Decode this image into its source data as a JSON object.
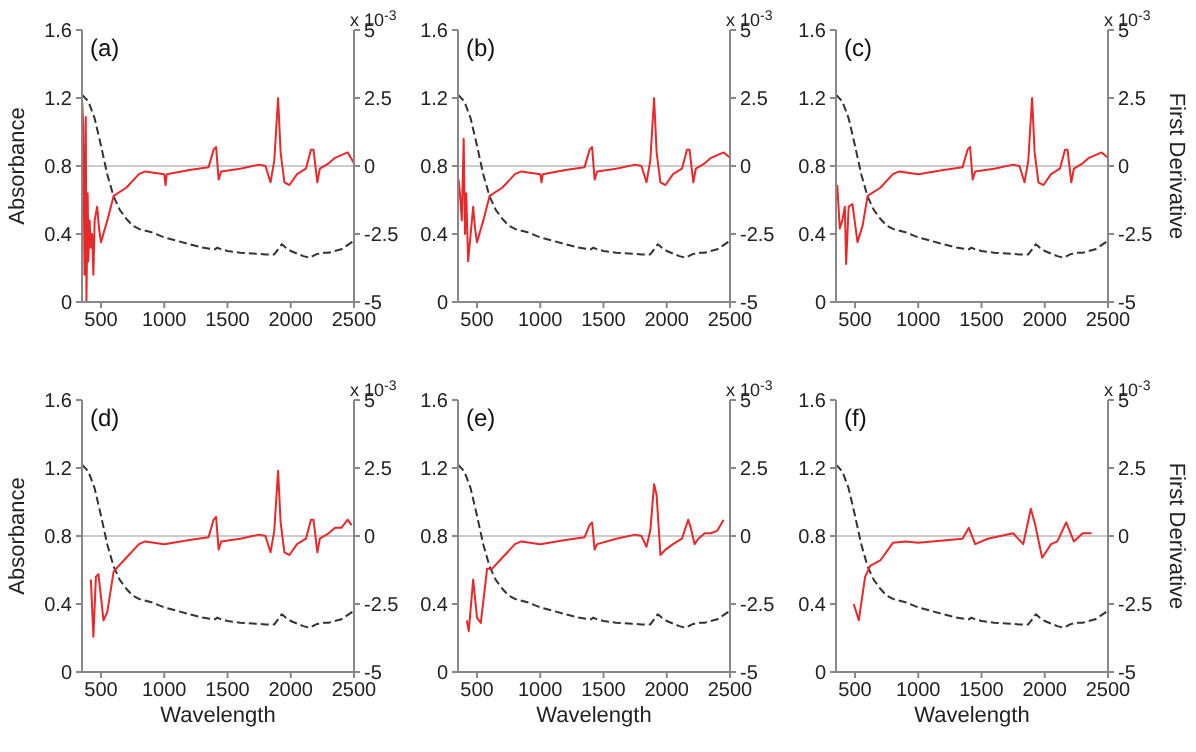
{
  "chart_data": [
    {
      "type": "line",
      "title": "(a)",
      "ylabel": "Absorbance",
      "annotations": [
        "x 10$^{-3}$"
      ],
      "xlim": [
        350,
        2500
      ],
      "xticks": [
        500,
        1000,
        1500,
        2000,
        2500
      ],
      "ylim": [
        0,
        1.6
      ],
      "yticks": [
        0,
        0.4,
        0.8,
        1.2,
        1.6
      ],
      "y2lim": [
        -5,
        5
      ],
      "y2ticks": [
        -5,
        -2.5,
        0,
        2.5,
        5
      ],
      "ref_lines": [
        {
          "axis": "y2",
          "value": 0,
          "color": "#cccccc"
        }
      ],
      "series": [
        {
          "color": "#333333",
          "line_style": "dashed",
          "x": [
            350,
            400,
            450,
            500,
            550,
            600,
            650,
            700,
            750,
            800,
            900,
            1000,
            1100,
            1200,
            1300,
            1400,
            1420,
            1450,
            1500,
            1600,
            1700,
            1800,
            1870,
            1900,
            1930,
            1960,
            2000,
            2100,
            2150,
            2200,
            2250,
            2300,
            2400,
            2500
          ],
          "values": [
            1.22,
            1.18,
            1.08,
            0.92,
            0.75,
            0.62,
            0.54,
            0.49,
            0.45,
            0.43,
            0.41,
            0.38,
            0.36,
            0.34,
            0.32,
            0.31,
            0.32,
            0.31,
            0.3,
            0.29,
            0.285,
            0.28,
            0.28,
            0.31,
            0.34,
            0.32,
            0.3,
            0.27,
            0.26,
            0.28,
            0.29,
            0.29,
            0.31,
            0.36
          ]
        },
        {
          "axis": "y2",
          "color": "#e8282a",
          "line_style": "solid",
          "x": [
            350,
            360,
            370,
            380,
            385,
            395,
            400,
            410,
            420,
            430,
            440,
            450,
            470,
            485,
            500,
            550,
            600,
            700,
            800,
            850,
            1000,
            1010,
            1020,
            1200,
            1350,
            1390,
            1410,
            1430,
            1450,
            1600,
            1750,
            1800,
            1840,
            1870,
            1900,
            1920,
            1950,
            1990,
            2050,
            2120,
            2160,
            2180,
            2210,
            2230,
            2300,
            2350,
            2400,
            2450,
            2500
          ],
          "values": [
            2.5,
            1.5,
            -4,
            1.8,
            -5,
            -1,
            -3.5,
            -2,
            -3,
            -2.5,
            -4,
            -2,
            -1.5,
            -2.3,
            -2.8,
            -2,
            -1.1,
            -0.8,
            -0.3,
            -0.2,
            -0.3,
            -0.7,
            -0.3,
            -0.15,
            -0.05,
            0.6,
            0.7,
            -0.5,
            -0.2,
            -0.1,
            0.05,
            0,
            -0.6,
            0.2,
            2.5,
            0.5,
            -0.6,
            -0.7,
            -0.3,
            -0.1,
            0.6,
            0.6,
            -0.6,
            -0.1,
            0.1,
            0.3,
            0.4,
            0.5,
            0.1
          ]
        }
      ]
    },
    {
      "type": "line",
      "title": "(b)",
      "annotations": [
        "x 10$^{-3}$"
      ],
      "xlim": [
        350,
        2500
      ],
      "xticks": [
        500,
        1000,
        1500,
        2000,
        2500
      ],
      "ylim": [
        0,
        1.6
      ],
      "yticks": [
        0,
        0.4,
        0.8,
        1.2,
        1.6
      ],
      "y2lim": [
        -5,
        5
      ],
      "y2ticks": [
        -5,
        -2.5,
        0,
        2.5,
        5
      ],
      "ref_lines": [
        {
          "axis": "y2",
          "value": 0,
          "color": "#cccccc"
        }
      ],
      "series": [
        {
          "color": "#333333",
          "line_style": "dashed",
          "x": [
            350,
            400,
            450,
            500,
            550,
            600,
            650,
            700,
            750,
            800,
            900,
            1000,
            1100,
            1200,
            1300,
            1400,
            1420,
            1450,
            1500,
            1600,
            1700,
            1800,
            1870,
            1900,
            1930,
            1960,
            2000,
            2100,
            2150,
            2200,
            2250,
            2300,
            2400,
            2500
          ],
          "values": [
            1.22,
            1.18,
            1.08,
            0.92,
            0.75,
            0.62,
            0.54,
            0.49,
            0.45,
            0.43,
            0.41,
            0.38,
            0.36,
            0.34,
            0.32,
            0.31,
            0.32,
            0.31,
            0.3,
            0.29,
            0.285,
            0.28,
            0.28,
            0.31,
            0.34,
            0.32,
            0.3,
            0.27,
            0.26,
            0.28,
            0.29,
            0.29,
            0.31,
            0.36
          ]
        },
        {
          "axis": "y2",
          "color": "#e8282a",
          "line_style": "solid",
          "x": [
            355,
            365,
            380,
            395,
            405,
            415,
            430,
            450,
            470,
            485,
            500,
            550,
            600,
            700,
            800,
            850,
            1000,
            1010,
            1020,
            1200,
            1350,
            1390,
            1410,
            1430,
            1450,
            1600,
            1750,
            1800,
            1840,
            1870,
            1900,
            1920,
            1950,
            1990,
            2050,
            2120,
            2160,
            2180,
            2210,
            2230,
            2300,
            2350,
            2400,
            2450,
            2500
          ],
          "values": [
            -0.5,
            -1,
            -2,
            1,
            -2.5,
            -1,
            -3.5,
            -2.5,
            -1.5,
            -2.3,
            -2.8,
            -2,
            -1.1,
            -0.8,
            -0.3,
            -0.2,
            -0.3,
            -0.6,
            -0.3,
            -0.15,
            -0.05,
            0.6,
            0.7,
            -0.5,
            -0.2,
            -0.1,
            0.05,
            0,
            -0.6,
            0.2,
            2.5,
            0.5,
            -0.6,
            -0.7,
            -0.3,
            -0.1,
            0.6,
            0.6,
            -0.6,
            -0.1,
            0.1,
            0.3,
            0.4,
            0.5,
            0.3
          ]
        }
      ]
    },
    {
      "type": "line",
      "title": "(c)",
      "y2label": "First Derivative",
      "annotations": [
        "x 10$^{-3}$"
      ],
      "xlim": [
        350,
        2500
      ],
      "xticks": [
        500,
        1000,
        1500,
        2000,
        2500
      ],
      "ylim": [
        0,
        1.6
      ],
      "yticks": [
        0,
        0.4,
        0.8,
        1.2,
        1.6
      ],
      "y2lim": [
        -5,
        5
      ],
      "y2ticks": [
        -5,
        -2.5,
        0,
        2.5,
        5
      ],
      "ref_lines": [
        {
          "axis": "y2",
          "value": 0,
          "color": "#cccccc"
        }
      ],
      "series": [
        {
          "color": "#333333",
          "line_style": "dashed",
          "x": [
            350,
            400,
            450,
            500,
            550,
            600,
            650,
            700,
            750,
            800,
            900,
            1000,
            1100,
            1200,
            1300,
            1400,
            1420,
            1450,
            1500,
            1600,
            1700,
            1800,
            1870,
            1900,
            1930,
            1960,
            2000,
            2100,
            2150,
            2200,
            2250,
            2300,
            2400,
            2500
          ],
          "values": [
            1.22,
            1.18,
            1.08,
            0.92,
            0.75,
            0.62,
            0.54,
            0.49,
            0.45,
            0.43,
            0.41,
            0.38,
            0.36,
            0.34,
            0.32,
            0.31,
            0.32,
            0.31,
            0.3,
            0.29,
            0.285,
            0.28,
            0.28,
            0.31,
            0.34,
            0.32,
            0.3,
            0.27,
            0.26,
            0.28,
            0.29,
            0.29,
            0.31,
            0.36
          ]
        },
        {
          "axis": "y2",
          "color": "#e8282a",
          "line_style": "solid",
          "x": [
            360,
            380,
            400,
            420,
            430,
            450,
            480,
            520,
            560,
            600,
            700,
            800,
            850,
            1000,
            1200,
            1350,
            1390,
            1410,
            1430,
            1450,
            1600,
            1750,
            1800,
            1840,
            1870,
            1900,
            1920,
            1950,
            1990,
            2050,
            2120,
            2160,
            2180,
            2210,
            2230,
            2300,
            2350,
            2400,
            2450,
            2500
          ],
          "values": [
            -0.7,
            -2.3,
            -2,
            -1.5,
            -3.6,
            -1.5,
            -1.4,
            -2.8,
            -2.2,
            -1.1,
            -0.8,
            -0.3,
            -0.2,
            -0.3,
            -0.15,
            -0.05,
            0.6,
            0.7,
            -0.5,
            -0.2,
            -0.1,
            0.05,
            0,
            -0.6,
            0.2,
            2.5,
            0.5,
            -0.6,
            -0.7,
            -0.3,
            -0.1,
            0.6,
            0.6,
            -0.6,
            -0.1,
            0.1,
            0.3,
            0.4,
            0.5,
            0.3
          ]
        }
      ]
    },
    {
      "type": "line",
      "title": "(d)",
      "ylabel": "Absorbance",
      "xlabel": "Wavelength",
      "annotations": [
        "x 10$^{-3}$"
      ],
      "xlim": [
        350,
        2500
      ],
      "xticks": [
        500,
        1000,
        1500,
        2000,
        2500
      ],
      "ylim": [
        0,
        1.6
      ],
      "yticks": [
        0,
        0.4,
        0.8,
        1.2,
        1.6
      ],
      "y2lim": [
        -5,
        5
      ],
      "y2ticks": [
        -5,
        -2.5,
        0,
        2.5,
        5
      ],
      "ref_lines": [
        {
          "axis": "y2",
          "value": 0,
          "color": "#cccccc"
        }
      ],
      "series": [
        {
          "color": "#333333",
          "line_style": "dashed",
          "x": [
            350,
            400,
            450,
            500,
            550,
            600,
            650,
            700,
            750,
            800,
            900,
            1000,
            1100,
            1200,
            1300,
            1400,
            1420,
            1450,
            1500,
            1600,
            1700,
            1800,
            1870,
            1900,
            1930,
            1960,
            2000,
            2100,
            2150,
            2200,
            2250,
            2300,
            2400,
            2500
          ],
          "values": [
            1.22,
            1.18,
            1.08,
            0.92,
            0.75,
            0.62,
            0.54,
            0.49,
            0.45,
            0.43,
            0.41,
            0.38,
            0.36,
            0.34,
            0.32,
            0.31,
            0.32,
            0.31,
            0.3,
            0.29,
            0.285,
            0.28,
            0.28,
            0.31,
            0.34,
            0.32,
            0.3,
            0.27,
            0.26,
            0.28,
            0.29,
            0.29,
            0.31,
            0.36
          ]
        },
        {
          "axis": "y2",
          "color": "#e8282a",
          "line_style": "solid",
          "x": [
            420,
            440,
            460,
            480,
            520,
            550,
            600,
            700,
            800,
            850,
            1000,
            1200,
            1350,
            1390,
            1410,
            1430,
            1450,
            1600,
            1750,
            1800,
            1840,
            1870,
            1900,
            1920,
            1950,
            1990,
            2050,
            2120,
            2160,
            2180,
            2210,
            2230,
            2300,
            2350,
            2400,
            2450,
            2480
          ],
          "values": [
            -1.6,
            -3.7,
            -1.5,
            -1.4,
            -3.1,
            -2.8,
            -1.3,
            -0.8,
            -0.3,
            -0.2,
            -0.3,
            -0.15,
            -0.05,
            0.6,
            0.7,
            -0.5,
            -0.2,
            -0.1,
            0.05,
            0,
            -0.6,
            0.2,
            2.4,
            0.5,
            -0.6,
            -0.7,
            -0.3,
            -0.1,
            0.6,
            0.6,
            -0.6,
            -0.1,
            0.1,
            0.3,
            0.3,
            0.6,
            0.4
          ]
        }
      ]
    },
    {
      "type": "line",
      "title": "(e)",
      "xlabel": "Wavelength",
      "annotations": [
        "x 10$^{-3}$"
      ],
      "xlim": [
        350,
        2500
      ],
      "xticks": [
        500,
        1000,
        1500,
        2000,
        2500
      ],
      "ylim": [
        0,
        1.6
      ],
      "yticks": [
        0,
        0.4,
        0.8,
        1.2,
        1.6
      ],
      "y2lim": [
        -5,
        5
      ],
      "y2ticks": [
        -5,
        -2.5,
        0,
        2.5,
        5
      ],
      "ref_lines": [
        {
          "axis": "y2",
          "value": 0,
          "color": "#cccccc"
        }
      ],
      "series": [
        {
          "color": "#333333",
          "line_style": "dashed",
          "x": [
            350,
            400,
            450,
            500,
            550,
            600,
            650,
            700,
            750,
            800,
            900,
            1000,
            1100,
            1200,
            1300,
            1400,
            1420,
            1450,
            1500,
            1600,
            1700,
            1800,
            1870,
            1900,
            1930,
            1960,
            2000,
            2100,
            2150,
            2200,
            2250,
            2300,
            2400,
            2500
          ],
          "values": [
            1.22,
            1.18,
            1.08,
            0.92,
            0.75,
            0.62,
            0.54,
            0.49,
            0.45,
            0.43,
            0.41,
            0.38,
            0.36,
            0.34,
            0.32,
            0.31,
            0.32,
            0.31,
            0.3,
            0.29,
            0.285,
            0.28,
            0.28,
            0.31,
            0.34,
            0.32,
            0.3,
            0.27,
            0.26,
            0.28,
            0.29,
            0.29,
            0.31,
            0.36
          ]
        },
        {
          "axis": "y2",
          "color": "#e8282a",
          "line_style": "solid",
          "x": [
            420,
            435,
            470,
            500,
            530,
            580,
            620,
            700,
            800,
            850,
            1000,
            1200,
            1350,
            1390,
            1410,
            1430,
            1450,
            1600,
            1750,
            1800,
            1840,
            1870,
            1900,
            1920,
            1950,
            1990,
            2050,
            2120,
            2170,
            2190,
            2220,
            2250,
            2300,
            2350,
            2400,
            2450
          ],
          "values": [
            -3.1,
            -3.5,
            -1.6,
            -3,
            -3.2,
            -1.2,
            -1.2,
            -0.8,
            -0.3,
            -0.2,
            -0.3,
            -0.15,
            -0.05,
            0.4,
            0.5,
            -0.5,
            -0.3,
            -0.1,
            0.05,
            0,
            -0.4,
            0.2,
            1.9,
            1.5,
            -0.7,
            -0.5,
            -0.3,
            -0.1,
            0.6,
            0.3,
            -0.3,
            -0.1,
            0.1,
            0.1,
            0.2,
            0.6
          ]
        }
      ]
    },
    {
      "type": "line",
      "title": "(f)",
      "xlabel": "Wavelength",
      "y2label": "First Derivative",
      "annotations": [
        "x 10$^{-3}$"
      ],
      "xlim": [
        350,
        2500
      ],
      "xticks": [
        500,
        1000,
        1500,
        2000,
        2500
      ],
      "ylim": [
        0,
        1.6
      ],
      "yticks": [
        0,
        0.4,
        0.8,
        1.2,
        1.6
      ],
      "y2lim": [
        -5,
        5
      ],
      "y2ticks": [
        -5,
        -2.5,
        0,
        2.5,
        5
      ],
      "ref_lines": [
        {
          "axis": "y2",
          "value": 0,
          "color": "#cccccc"
        }
      ],
      "series": [
        {
          "color": "#333333",
          "line_style": "dashed",
          "x": [
            350,
            400,
            450,
            500,
            550,
            600,
            650,
            700,
            750,
            800,
            900,
            1000,
            1100,
            1200,
            1300,
            1400,
            1420,
            1450,
            1500,
            1600,
            1700,
            1800,
            1870,
            1900,
            1930,
            1960,
            2000,
            2100,
            2150,
            2200,
            2250,
            2300,
            2400,
            2500
          ],
          "values": [
            1.22,
            1.18,
            1.08,
            0.92,
            0.75,
            0.62,
            0.54,
            0.49,
            0.45,
            0.43,
            0.41,
            0.38,
            0.36,
            0.34,
            0.32,
            0.31,
            0.32,
            0.31,
            0.3,
            0.29,
            0.285,
            0.28,
            0.28,
            0.31,
            0.34,
            0.32,
            0.3,
            0.27,
            0.26,
            0.28,
            0.29,
            0.29,
            0.31,
            0.36
          ]
        },
        {
          "axis": "y2",
          "color": "#e8282a",
          "line_style": "solid",
          "x": [
            490,
            530,
            580,
            620,
            700,
            800,
            900,
            1000,
            1350,
            1400,
            1450,
            1550,
            1750,
            1830,
            1890,
            1920,
            1980,
            2050,
            2100,
            2170,
            2230,
            2300,
            2370
          ],
          "values": [
            -2.5,
            -3.1,
            -1.5,
            -1.1,
            -0.9,
            -0.25,
            -0.2,
            -0.25,
            -0.1,
            0.3,
            -0.3,
            -0.1,
            0.1,
            -0.3,
            1,
            0.5,
            -0.8,
            -0.3,
            -0.2,
            0.5,
            -0.2,
            0.1,
            0.1
          ]
        }
      ]
    }
  ]
}
